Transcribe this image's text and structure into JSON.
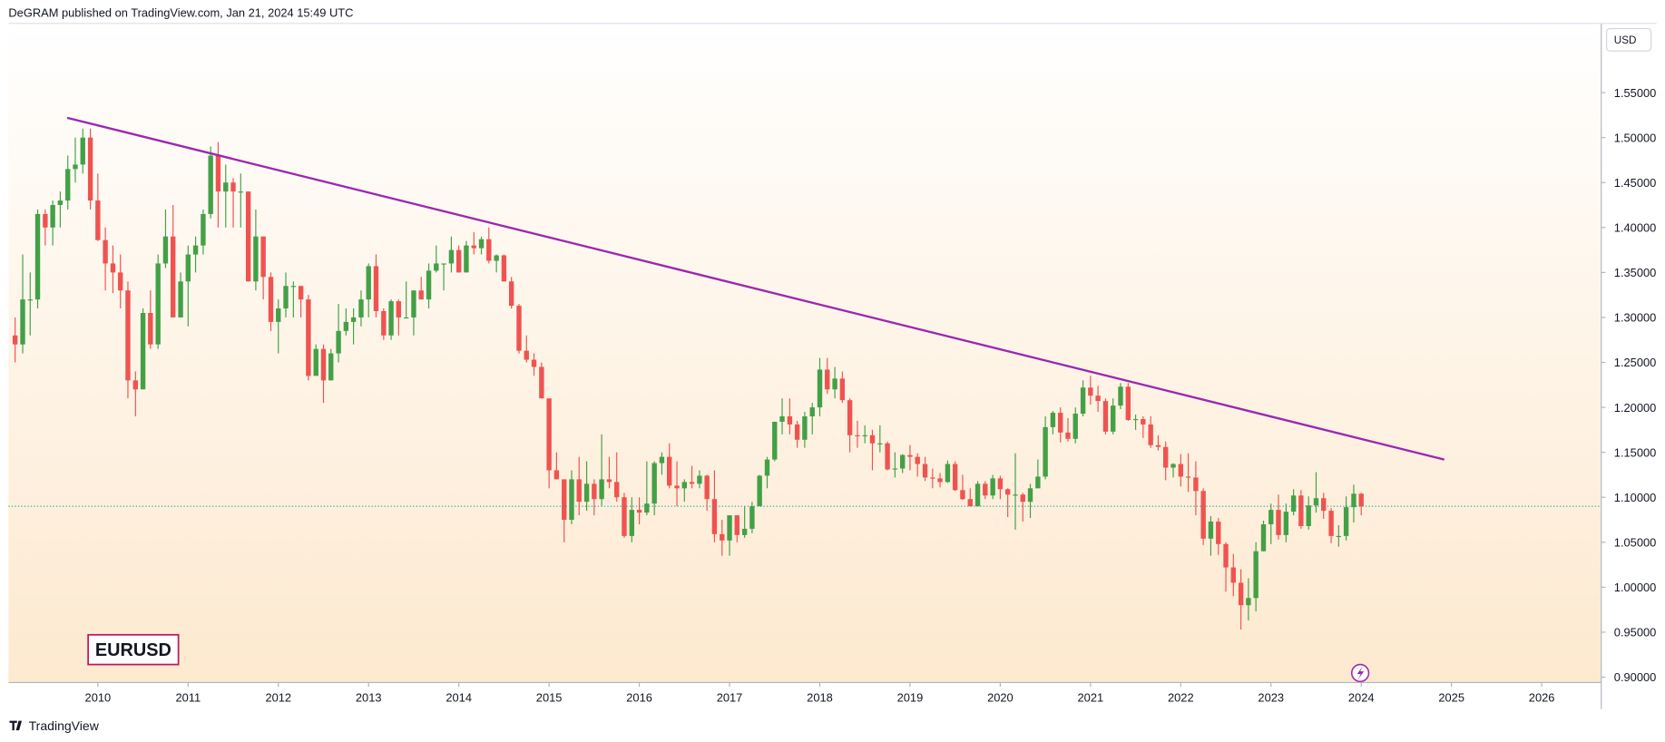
{
  "chart_data": {
    "type": "candlestick",
    "title": "DeGRAM published on TradingView.com, Jan 21, 2024 15:49 UTC",
    "currency": "USD",
    "symbol": "EURUSD",
    "brand": "TradingView",
    "up_color": "#43a047",
    "down_color": "#ef5350",
    "xlim": [
      2009.01,
      2026.66
    ],
    "ylim": [
      0.894,
      1.627
    ],
    "xticks": [
      2010,
      2011,
      2012,
      2013,
      2014,
      2015,
      2016,
      2017,
      2018,
      2019,
      2020,
      2021,
      2022,
      2023,
      2024,
      2025,
      2026
    ],
    "yticks": [
      {
        "value": 0.9,
        "label": "0.90000"
      },
      {
        "value": 0.95,
        "label": "0.95000"
      },
      {
        "value": 1.0,
        "label": "1.00000"
      },
      {
        "value": 1.05,
        "label": "1.05000"
      },
      {
        "value": 1.1,
        "label": "1.10000"
      },
      {
        "value": 1.15,
        "label": "1.15000"
      },
      {
        "value": 1.2,
        "label": "1.20000"
      },
      {
        "value": 1.25,
        "label": "1.25000"
      },
      {
        "value": 1.3,
        "label": "1.30000"
      },
      {
        "value": 1.35,
        "label": "1.35000"
      },
      {
        "value": 1.4,
        "label": "1.40000"
      },
      {
        "value": 1.45,
        "label": "1.45000"
      },
      {
        "value": 1.5,
        "label": "1.50000"
      },
      {
        "value": 1.55,
        "label": "1.55000"
      }
    ],
    "trendline": {
      "x": [
        2009.66,
        2024.92
      ],
      "y": [
        1.522,
        1.142
      ],
      "color": "#9c27b0"
    },
    "x": [
      2009.083,
      2009.167,
      2009.25,
      2009.333,
      2009.417,
      2009.5,
      2009.583,
      2009.667,
      2009.75,
      2009.833,
      2009.917,
      2010.0,
      2010.083,
      2010.167,
      2010.25,
      2010.333,
      2010.417,
      2010.5,
      2010.583,
      2010.667,
      2010.75,
      2010.833,
      2010.917,
      2011.0,
      2011.083,
      2011.167,
      2011.25,
      2011.333,
      2011.417,
      2011.5,
      2011.583,
      2011.667,
      2011.75,
      2011.833,
      2011.917,
      2012.0,
      2012.083,
      2012.167,
      2012.25,
      2012.333,
      2012.417,
      2012.5,
      2012.583,
      2012.667,
      2012.75,
      2012.833,
      2012.917,
      2013.0,
      2013.083,
      2013.167,
      2013.25,
      2013.333,
      2013.417,
      2013.5,
      2013.583,
      2013.667,
      2013.75,
      2013.833,
      2013.917,
      2014.0,
      2014.083,
      2014.167,
      2014.25,
      2014.333,
      2014.417,
      2014.5,
      2014.583,
      2014.667,
      2014.75,
      2014.833,
      2014.917,
      2015.0,
      2015.083,
      2015.167,
      2015.25,
      2015.333,
      2015.417,
      2015.5,
      2015.583,
      2015.667,
      2015.75,
      2015.833,
      2015.917,
      2016.0,
      2016.083,
      2016.167,
      2016.25,
      2016.333,
      2016.417,
      2016.5,
      2016.583,
      2016.667,
      2016.75,
      2016.833,
      2016.917,
      2017.0,
      2017.083,
      2017.167,
      2017.25,
      2017.333,
      2017.417,
      2017.5,
      2017.583,
      2017.667,
      2017.75,
      2017.833,
      2017.917,
      2018.0,
      2018.083,
      2018.167,
      2018.25,
      2018.333,
      2018.417,
      2018.5,
      2018.583,
      2018.667,
      2018.75,
      2018.833,
      2018.917,
      2019.0,
      2019.083,
      2019.167,
      2019.25,
      2019.333,
      2019.417,
      2019.5,
      2019.583,
      2019.667,
      2019.75,
      2019.833,
      2019.917,
      2020.0,
      2020.083,
      2020.167,
      2020.25,
      2020.333,
      2020.417,
      2020.5,
      2020.583,
      2020.667,
      2020.75,
      2020.833,
      2020.917,
      2021.0,
      2021.083,
      2021.167,
      2021.25,
      2021.333,
      2021.417,
      2021.5,
      2021.583,
      2021.667,
      2021.75,
      2021.833,
      2021.917,
      2022.0,
      2022.083,
      2022.167,
      2022.25,
      2022.333,
      2022.417,
      2022.5,
      2022.583,
      2022.667,
      2022.75,
      2022.833,
      2022.917,
      2023.0,
      2023.083,
      2023.167,
      2023.25,
      2023.333,
      2023.417,
      2023.5,
      2023.583,
      2023.667,
      2023.75,
      2023.833,
      2023.917,
      2024.0
    ],
    "ohlc": [
      [
        1.28,
        1.3,
        1.25,
        1.27
      ],
      [
        1.27,
        1.37,
        1.26,
        1.32
      ],
      [
        1.32,
        1.35,
        1.28,
        1.32
      ],
      [
        1.32,
        1.42,
        1.31,
        1.415
      ],
      [
        1.415,
        1.42,
        1.38,
        1.4
      ],
      [
        1.4,
        1.43,
        1.38,
        1.425
      ],
      [
        1.425,
        1.44,
        1.4,
        1.43
      ],
      [
        1.43,
        1.48,
        1.42,
        1.465
      ],
      [
        1.465,
        1.5,
        1.45,
        1.47
      ],
      [
        1.47,
        1.51,
        1.46,
        1.5
      ],
      [
        1.5,
        1.51,
        1.42,
        1.43
      ],
      [
        1.43,
        1.46,
        1.385,
        1.386
      ],
      [
        1.386,
        1.4,
        1.33,
        1.36
      ],
      [
        1.36,
        1.38,
        1.327,
        1.35
      ],
      [
        1.35,
        1.37,
        1.31,
        1.33
      ],
      [
        1.33,
        1.34,
        1.21,
        1.23
      ],
      [
        1.23,
        1.24,
        1.19,
        1.22
      ],
      [
        1.22,
        1.31,
        1.22,
        1.305
      ],
      [
        1.305,
        1.33,
        1.265,
        1.27
      ],
      [
        1.27,
        1.37,
        1.265,
        1.36
      ],
      [
        1.36,
        1.42,
        1.355,
        1.39
      ],
      [
        1.39,
        1.425,
        1.3,
        1.3
      ],
      [
        1.3,
        1.35,
        1.3,
        1.34
      ],
      [
        1.34,
        1.38,
        1.29,
        1.37
      ],
      [
        1.37,
        1.39,
        1.35,
        1.38
      ],
      [
        1.38,
        1.42,
        1.37,
        1.415
      ],
      [
        1.415,
        1.49,
        1.41,
        1.48
      ],
      [
        1.48,
        1.495,
        1.4,
        1.44
      ],
      [
        1.44,
        1.47,
        1.4,
        1.45
      ],
      [
        1.45,
        1.455,
        1.4,
        1.44
      ],
      [
        1.44,
        1.46,
        1.4,
        1.44
      ],
      [
        1.44,
        1.44,
        1.34,
        1.34
      ],
      [
        1.34,
        1.42,
        1.33,
        1.39
      ],
      [
        1.39,
        1.39,
        1.32,
        1.345
      ],
      [
        1.345,
        1.35,
        1.285,
        1.295
      ],
      [
        1.295,
        1.32,
        1.26,
        1.31
      ],
      [
        1.31,
        1.35,
        1.3,
        1.335
      ],
      [
        1.335,
        1.34,
        1.3,
        1.335
      ],
      [
        1.335,
        1.335,
        1.3,
        1.32
      ],
      [
        1.32,
        1.325,
        1.23,
        1.235
      ],
      [
        1.235,
        1.27,
        1.24,
        1.265
      ],
      [
        1.265,
        1.27,
        1.205,
        1.23
      ],
      [
        1.23,
        1.265,
        1.23,
        1.26
      ],
      [
        1.26,
        1.315,
        1.25,
        1.285
      ],
      [
        1.285,
        1.31,
        1.28,
        1.295
      ],
      [
        1.295,
        1.31,
        1.27,
        1.3
      ],
      [
        1.3,
        1.33,
        1.29,
        1.32
      ],
      [
        1.32,
        1.36,
        1.3,
        1.357
      ],
      [
        1.357,
        1.37,
        1.3,
        1.307
      ],
      [
        1.307,
        1.31,
        1.275,
        1.28
      ],
      [
        1.28,
        1.32,
        1.275,
        1.318
      ],
      [
        1.318,
        1.32,
        1.28,
        1.3
      ],
      [
        1.3,
        1.34,
        1.3,
        1.3
      ],
      [
        1.3,
        1.33,
        1.28,
        1.33
      ],
      [
        1.33,
        1.345,
        1.32,
        1.32
      ],
      [
        1.32,
        1.36,
        1.31,
        1.352
      ],
      [
        1.352,
        1.38,
        1.35,
        1.36
      ],
      [
        1.36,
        1.36,
        1.33,
        1.36
      ],
      [
        1.36,
        1.39,
        1.35,
        1.375
      ],
      [
        1.375,
        1.38,
        1.35,
        1.35
      ],
      [
        1.35,
        1.385,
        1.35,
        1.38
      ],
      [
        1.38,
        1.395,
        1.37,
        1.377
      ],
      [
        1.377,
        1.39,
        1.37,
        1.387
      ],
      [
        1.387,
        1.4,
        1.36,
        1.363
      ],
      [
        1.363,
        1.37,
        1.35,
        1.369
      ],
      [
        1.369,
        1.37,
        1.34,
        1.34
      ],
      [
        1.34,
        1.345,
        1.31,
        1.313
      ],
      [
        1.313,
        1.315,
        1.26,
        1.263
      ],
      [
        1.263,
        1.28,
        1.25,
        1.253
      ],
      [
        1.253,
        1.26,
        1.235,
        1.245
      ],
      [
        1.245,
        1.25,
        1.21,
        1.21
      ],
      [
        1.21,
        1.21,
        1.11,
        1.13
      ],
      [
        1.13,
        1.15,
        1.12,
        1.12
      ],
      [
        1.12,
        1.12,
        1.05,
        1.075
      ],
      [
        1.075,
        1.13,
        1.07,
        1.12
      ],
      [
        1.12,
        1.145,
        1.08,
        1.095
      ],
      [
        1.095,
        1.14,
        1.085,
        1.115
      ],
      [
        1.115,
        1.12,
        1.08,
        1.098
      ],
      [
        1.098,
        1.17,
        1.09,
        1.12
      ],
      [
        1.12,
        1.145,
        1.11,
        1.117
      ],
      [
        1.117,
        1.15,
        1.095,
        1.1
      ],
      [
        1.1,
        1.105,
        1.055,
        1.057
      ],
      [
        1.057,
        1.1,
        1.05,
        1.086
      ],
      [
        1.086,
        1.1,
        1.07,
        1.083
      ],
      [
        1.083,
        1.14,
        1.08,
        1.093
      ],
      [
        1.093,
        1.14,
        1.08,
        1.138
      ],
      [
        1.138,
        1.15,
        1.125,
        1.145
      ],
      [
        1.145,
        1.16,
        1.11,
        1.113
      ],
      [
        1.113,
        1.14,
        1.09,
        1.11
      ],
      [
        1.11,
        1.12,
        1.095,
        1.117
      ],
      [
        1.117,
        1.135,
        1.11,
        1.115
      ],
      [
        1.115,
        1.13,
        1.11,
        1.124
      ],
      [
        1.124,
        1.125,
        1.085,
        1.098
      ],
      [
        1.098,
        1.13,
        1.05,
        1.059
      ],
      [
        1.059,
        1.075,
        1.035,
        1.052
      ],
      [
        1.052,
        1.08,
        1.035,
        1.08
      ],
      [
        1.08,
        1.08,
        1.05,
        1.058
      ],
      [
        1.058,
        1.09,
        1.055,
        1.065
      ],
      [
        1.065,
        1.095,
        1.06,
        1.09
      ],
      [
        1.09,
        1.125,
        1.09,
        1.124
      ],
      [
        1.124,
        1.145,
        1.11,
        1.142
      ],
      [
        1.142,
        1.18,
        1.14,
        1.184
      ],
      [
        1.184,
        1.21,
        1.17,
        1.19
      ],
      [
        1.19,
        1.21,
        1.17,
        1.181
      ],
      [
        1.181,
        1.185,
        1.155,
        1.164
      ],
      [
        1.164,
        1.195,
        1.155,
        1.19
      ],
      [
        1.19,
        1.205,
        1.17,
        1.2
      ],
      [
        1.2,
        1.255,
        1.19,
        1.242
      ],
      [
        1.242,
        1.255,
        1.215,
        1.22
      ],
      [
        1.22,
        1.245,
        1.21,
        1.232
      ],
      [
        1.232,
        1.24,
        1.205,
        1.208
      ],
      [
        1.208,
        1.21,
        1.15,
        1.169
      ],
      [
        1.169,
        1.185,
        1.155,
        1.168
      ],
      [
        1.168,
        1.18,
        1.16,
        1.169
      ],
      [
        1.169,
        1.175,
        1.13,
        1.16
      ],
      [
        1.16,
        1.18,
        1.15,
        1.16
      ],
      [
        1.16,
        1.162,
        1.13,
        1.131
      ],
      [
        1.131,
        1.15,
        1.122,
        1.132
      ],
      [
        1.132,
        1.148,
        1.127,
        1.147
      ],
      [
        1.147,
        1.158,
        1.13,
        1.145
      ],
      [
        1.145,
        1.149,
        1.123,
        1.137
      ],
      [
        1.137,
        1.145,
        1.118,
        1.122
      ],
      [
        1.122,
        1.132,
        1.11,
        1.121
      ],
      [
        1.121,
        1.127,
        1.111,
        1.117
      ],
      [
        1.117,
        1.141,
        1.116,
        1.137
      ],
      [
        1.137,
        1.14,
        1.107,
        1.108
      ],
      [
        1.108,
        1.125,
        1.097,
        1.098
      ],
      [
        1.098,
        1.11,
        1.09,
        1.09
      ],
      [
        1.09,
        1.118,
        1.09,
        1.115
      ],
      [
        1.115,
        1.118,
        1.098,
        1.102
      ],
      [
        1.102,
        1.125,
        1.098,
        1.121
      ],
      [
        1.121,
        1.124,
        1.098,
        1.109
      ],
      [
        1.109,
        1.11,
        1.078,
        1.103
      ],
      [
        1.103,
        1.149,
        1.064,
        1.103
      ],
      [
        1.103,
        1.105,
        1.073,
        1.095
      ],
      [
        1.095,
        1.115,
        1.077,
        1.11
      ],
      [
        1.11,
        1.142,
        1.11,
        1.123
      ],
      [
        1.123,
        1.19,
        1.12,
        1.178
      ],
      [
        1.178,
        1.196,
        1.17,
        1.194
      ],
      [
        1.194,
        1.2,
        1.161,
        1.172
      ],
      [
        1.172,
        1.188,
        1.162,
        1.165
      ],
      [
        1.165,
        1.2,
        1.16,
        1.193
      ],
      [
        1.193,
        1.23,
        1.19,
        1.222
      ],
      [
        1.222,
        1.235,
        1.203,
        1.213
      ],
      [
        1.213,
        1.224,
        1.195,
        1.207
      ],
      [
        1.207,
        1.21,
        1.17,
        1.173
      ],
      [
        1.173,
        1.21,
        1.17,
        1.202
      ],
      [
        1.202,
        1.227,
        1.198,
        1.223
      ],
      [
        1.223,
        1.227,
        1.185,
        1.186
      ],
      [
        1.186,
        1.192,
        1.175,
        1.187
      ],
      [
        1.187,
        1.19,
        1.166,
        1.181
      ],
      [
        1.181,
        1.19,
        1.155,
        1.158
      ],
      [
        1.158,
        1.169,
        1.152,
        1.156
      ],
      [
        1.156,
        1.162,
        1.119,
        1.133
      ],
      [
        1.133,
        1.138,
        1.122,
        1.137
      ],
      [
        1.137,
        1.148,
        1.112,
        1.123
      ],
      [
        1.123,
        1.149,
        1.106,
        1.122
      ],
      [
        1.122,
        1.14,
        1.08,
        1.107
      ],
      [
        1.107,
        1.11,
        1.047,
        1.054
      ],
      [
        1.054,
        1.079,
        1.035,
        1.073
      ],
      [
        1.073,
        1.077,
        1.036,
        1.048
      ],
      [
        1.048,
        1.05,
        0.995,
        1.022
      ],
      [
        1.022,
        1.037,
        0.99,
        1.005
      ],
      [
        1.005,
        1.02,
        0.953,
        0.98
      ],
      [
        0.98,
        1.01,
        0.963,
        0.988
      ],
      [
        0.988,
        1.05,
        0.973,
        1.04
      ],
      [
        1.04,
        1.074,
        1.04,
        1.07
      ],
      [
        1.07,
        1.093,
        1.048,
        1.086
      ],
      [
        1.086,
        1.103,
        1.053,
        1.058
      ],
      [
        1.058,
        1.093,
        1.05,
        1.084
      ],
      [
        1.084,
        1.109,
        1.08,
        1.102
      ],
      [
        1.102,
        1.108,
        1.065,
        1.068
      ],
      [
        1.068,
        1.101,
        1.064,
        1.091
      ],
      [
        1.091,
        1.128,
        1.083,
        1.099
      ],
      [
        1.099,
        1.105,
        1.076,
        1.085
      ],
      [
        1.085,
        1.088,
        1.049,
        1.057
      ],
      [
        1.057,
        1.069,
        1.045,
        1.057
      ],
      [
        1.057,
        1.101,
        1.052,
        1.089
      ],
      [
        1.089,
        1.114,
        1.072,
        1.104
      ],
      [
        1.104,
        1.105,
        1.08,
        1.09
      ]
    ]
  }
}
